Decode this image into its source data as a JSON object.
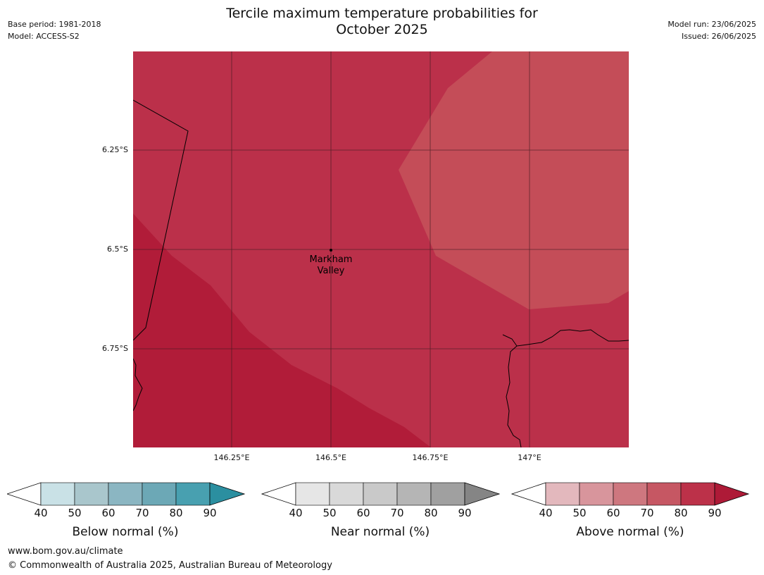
{
  "title": {
    "line1": "Tercile maximum temperature probabilities for",
    "line2": "October 2025"
  },
  "meta_left": {
    "base_period": "Base period: 1981-2018",
    "model": "Model: ACCESS-S2"
  },
  "meta_right": {
    "model_run": "Model run: 23/06/2025",
    "issued": "Issued: 26/06/2025"
  },
  "map": {
    "place_label_line1": "Markham",
    "place_label_line2": "Valley",
    "lat_labels": [
      "6.25°S",
      "6.5°S",
      "6.75°S"
    ],
    "lon_labels": [
      "146.25°E",
      "146.5°E",
      "146.75°E",
      "147°E"
    ],
    "zone_colors": {
      "above_70_80": "#c44d58",
      "above_80_90": "#bb304a",
      "above_90": "#b11c39"
    }
  },
  "colorbars": [
    {
      "title": "Below normal (%)",
      "ticks": [
        "40",
        "50",
        "60",
        "70",
        "80",
        "90"
      ],
      "colors": [
        "#c9e1e6",
        "#a9c6cc",
        "#8bb6c2",
        "#6ca8b6",
        "#48a0b0",
        "#2b8fa0"
      ]
    },
    {
      "title": "Near normal (%)",
      "ticks": [
        "40",
        "50",
        "60",
        "70",
        "80",
        "90"
      ],
      "colors": [
        "#e6e6e6",
        "#d9d9d9",
        "#c9c9c9",
        "#b5b5b5",
        "#a0a0a0",
        "#858585"
      ]
    },
    {
      "title": "Above normal (%)",
      "ticks": [
        "40",
        "50",
        "60",
        "70",
        "80",
        "90"
      ],
      "colors": [
        "#e3b8bd",
        "#d8959c",
        "#ce777f",
        "#c65763",
        "#bc3149",
        "#ae1a37"
      ]
    }
  ],
  "footer": {
    "url": "www.bom.gov.au/climate",
    "copyright": "© Commonwealth of Australia 2025, Australian Bureau of Meteorology"
  }
}
